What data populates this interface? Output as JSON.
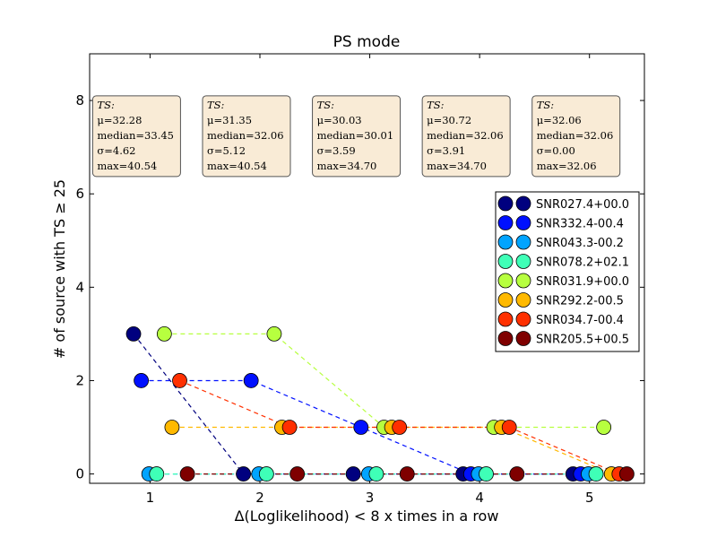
{
  "chart_data": {
    "type": "scatter",
    "title": "PS mode",
    "xlabel": "Δ(Loglikelihood) < 8 x times in a row",
    "ylabel": "# of source with TS ≥ 25",
    "xlim": [
      0.45,
      5.5
    ],
    "ylim": [
      -0.2,
      9
    ],
    "xticks": [
      "1",
      "2",
      "3",
      "4",
      "5"
    ],
    "yticks": [
      "0",
      "2",
      "4",
      "6",
      "8"
    ],
    "grid": false,
    "legend_position": "right",
    "series": [
      {
        "name": "SNR027.4+00.0",
        "color": "#00007f",
        "x": [
          0.85,
          1.85,
          2.85,
          3.85,
          4.85
        ],
        "y": [
          3,
          0,
          0,
          0,
          0
        ]
      },
      {
        "name": "SNR332.4-00.4",
        "color": "#0010ff",
        "x": [
          0.92,
          1.92,
          2.92,
          3.92,
          4.92
        ],
        "y": [
          2,
          2,
          1,
          0,
          0
        ]
      },
      {
        "name": "SNR043.3-00.2",
        "color": "#00a4ff",
        "x": [
          0.99,
          1.99,
          2.99,
          3.99,
          4.99
        ],
        "y": [
          0,
          0,
          0,
          0,
          0
        ]
      },
      {
        "name": "SNR078.2+02.1",
        "color": "#3fffb7",
        "x": [
          1.06,
          2.06,
          3.06,
          4.06,
          5.06
        ],
        "y": [
          0,
          0,
          0,
          0,
          0
        ]
      },
      {
        "name": "SNR031.9+00.0",
        "color": "#b7ff3f",
        "x": [
          1.13,
          2.13,
          3.13,
          4.13,
          5.13
        ],
        "y": [
          3,
          3,
          1,
          1,
          1
        ]
      },
      {
        "name": "SNR292.2-00.5",
        "color": "#ffb900",
        "x": [
          1.2,
          2.2,
          3.2,
          4.2,
          5.2
        ],
        "y": [
          1,
          1,
          1,
          1,
          0
        ]
      },
      {
        "name": "SNR034.7-00.4",
        "color": "#ff3000",
        "x": [
          1.27,
          2.27,
          3.27,
          4.27,
          5.27
        ],
        "y": [
          2,
          1,
          1,
          1,
          0
        ]
      },
      {
        "name": "SNR205.5+00.5",
        "color": "#7f0000",
        "x": [
          1.34,
          2.34,
          3.34,
          4.34,
          5.34
        ],
        "y": [
          0,
          0,
          0,
          0,
          0
        ]
      }
    ],
    "annotations": [
      {
        "x": 1,
        "head": "TS:",
        "lines": [
          "μ=32.28",
          "median=33.45",
          "σ=4.62",
          "max=40.54"
        ]
      },
      {
        "x": 2,
        "head": "TS:",
        "lines": [
          "μ=31.35",
          "median=32.06",
          "σ=5.12",
          "max=40.54"
        ]
      },
      {
        "x": 3,
        "head": "TS:",
        "lines": [
          "μ=30.03",
          "median=30.01",
          "σ=3.59",
          "max=34.70"
        ]
      },
      {
        "x": 4,
        "head": "TS:",
        "lines": [
          "μ=30.72",
          "median=32.06",
          "σ=3.91",
          "max=34.70"
        ]
      },
      {
        "x": 5,
        "head": "TS:",
        "lines": [
          "μ=32.06",
          "median=32.06",
          "σ=0.00",
          "max=32.06"
        ]
      }
    ],
    "annotation_style": {
      "fill": "#f9ebd6",
      "border": "#555555"
    }
  }
}
